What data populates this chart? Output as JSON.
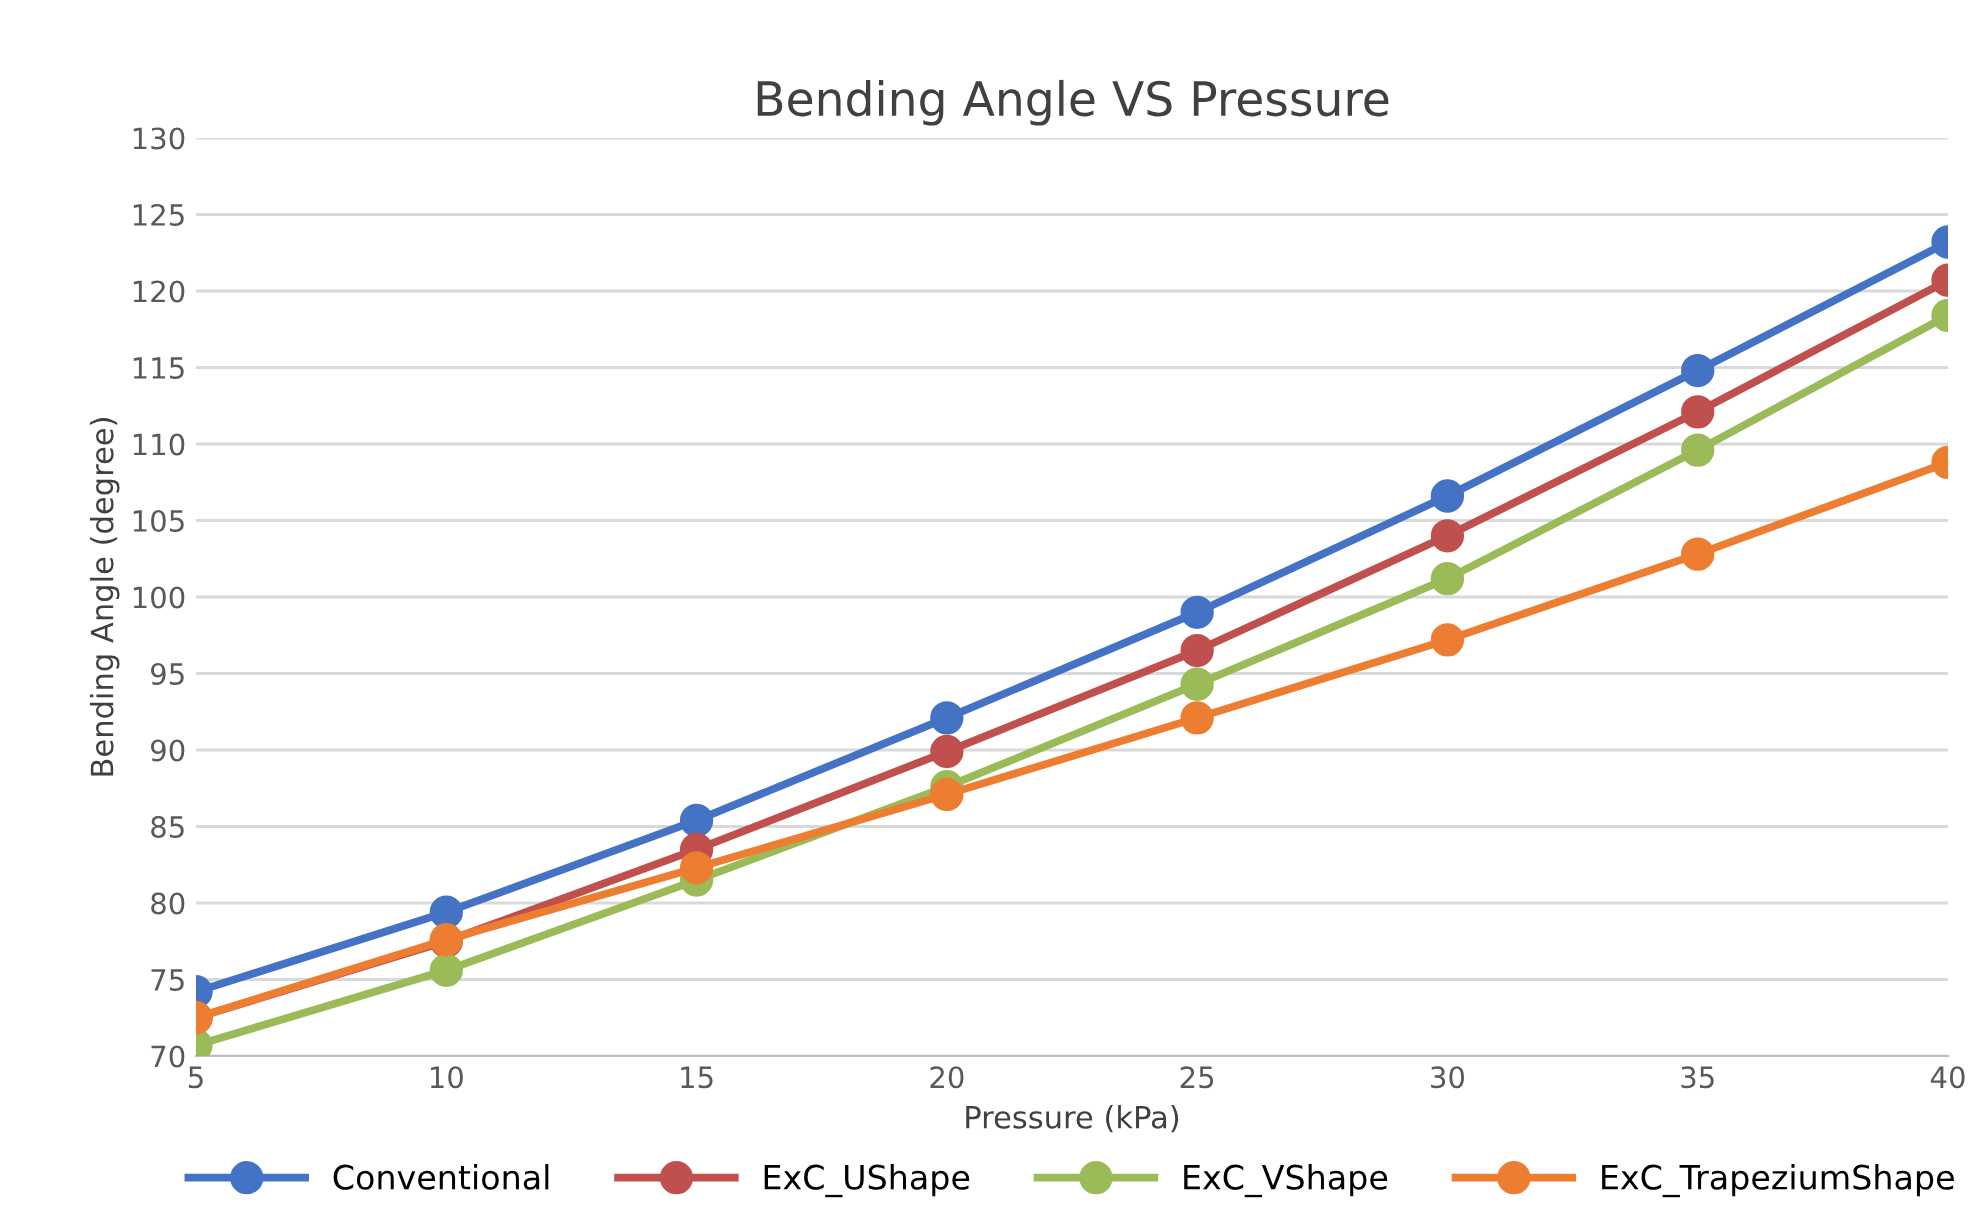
{
  "chart_data": {
    "type": "line",
    "title": "Bending Angle VS Pressure",
    "xlabel": "Pressure (kPa)",
    "ylabel": "Bending Angle (degree)",
    "x": [
      5,
      10,
      15,
      20,
      25,
      30,
      35,
      40
    ],
    "series": [
      {
        "name": "Conventional",
        "color": "#4472c4",
        "values": [
          74.2,
          79.4,
          85.4,
          92.1,
          99.0,
          106.6,
          114.8,
          123.2
        ]
      },
      {
        "name": "ExC_UShape",
        "color": "#c0504d",
        "values": [
          72.5,
          77.5,
          83.5,
          89.9,
          96.5,
          104.0,
          112.1,
          120.7
        ]
      },
      {
        "name": "ExC_VShape",
        "color": "#9bbb59",
        "values": [
          70.7,
          75.6,
          81.5,
          87.6,
          94.3,
          101.2,
          109.6,
          118.4
        ]
      },
      {
        "name": "ExC_TrapeziumShape",
        "color": "#ed7d31",
        "values": [
          72.5,
          77.6,
          82.3,
          87.1,
          92.1,
          97.2,
          102.8,
          108.8
        ]
      }
    ],
    "xlim": [
      5,
      40
    ],
    "xticks": [
      5,
      10,
      15,
      20,
      25,
      30,
      35,
      40
    ],
    "ylim": [
      70,
      130
    ],
    "yticks": [
      70,
      75,
      80,
      85,
      90,
      95,
      100,
      105,
      110,
      115,
      120,
      125,
      130
    ],
    "grid": "y",
    "legend": "bottom",
    "marker": "circle",
    "line_style": "solid"
  }
}
